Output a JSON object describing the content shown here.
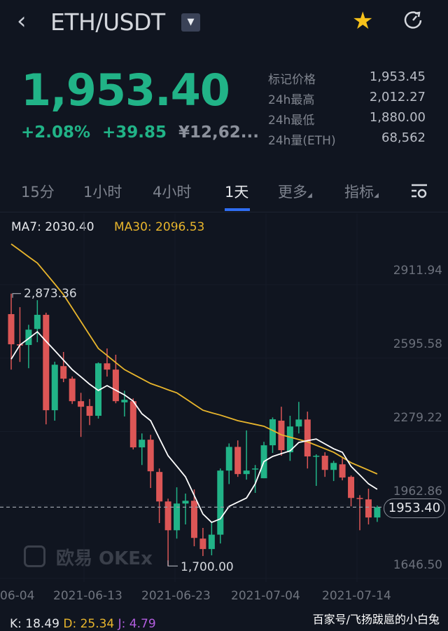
{
  "header": {
    "back_icon": "chevron-left-icon",
    "pair": "ETH/USDT",
    "dropdown_icon": "caret-down-icon",
    "favorite_icon": "star-icon",
    "refresh_icon": "refresh-icon"
  },
  "ticker": {
    "last_price": "1,953.40",
    "change_pct": "+2.08%",
    "change_abs": "+39.85",
    "cny_price": "¥12,62...",
    "stats": [
      {
        "label": "标记价格",
        "value": "1,953.45"
      },
      {
        "label": "24h最高",
        "value": "2,012.27"
      },
      {
        "label": "24h最低",
        "value": "1,880.00"
      },
      {
        "label": "24h量(ETH)",
        "value": "68,562"
      }
    ]
  },
  "tabs": [
    {
      "label": "15分"
    },
    {
      "label": "1小时"
    },
    {
      "label": "4小时"
    },
    {
      "label": "1天",
      "active": true
    },
    {
      "label": "更多"
    },
    {
      "label": "指标"
    }
  ],
  "tab_settings_icon": "chart-settings-icon",
  "indicators": {
    "ma7": "MA7: 2030.40",
    "ma30": "MA30: 2096.53",
    "kdj_k": "K: 18.49",
    "kdj_d": "D: 25.34",
    "kdj_j": "J: 4.79"
  },
  "watermark": "欧易 OKEx",
  "credit": "百家号/飞扬跋扈的小白兔",
  "colors": {
    "up": "#21b387",
    "down": "#dc5656",
    "ma7": "#ffffff",
    "ma30": "#e8b52c",
    "accent": "#2f6df2"
  },
  "chart_data": {
    "type": "candlestick",
    "y_ticks": [
      "2911.94",
      "2595.58",
      "2279.22",
      "1962.86",
      "1646.50"
    ],
    "ylim": [
      1646.5,
      2911.94
    ],
    "x_ticks": [
      "06-04",
      "2021-06-13",
      "2021-06-23",
      "2021-07-04",
      "2021-07-14"
    ],
    "current_price": "1953.40",
    "max_label": "2,873.36",
    "min_label": "1,700.00",
    "candles": [
      [
        2785,
        2873.36,
        2546,
        2655
      ],
      [
        2655,
        2815,
        2579,
        2650
      ],
      [
        2652,
        2739,
        2552,
        2718
      ],
      [
        2721,
        2845,
        2664,
        2782
      ],
      [
        2782,
        2791,
        2310,
        2371
      ],
      [
        2371,
        2580,
        2326,
        2567
      ],
      [
        2561,
        2622,
        2492,
        2507
      ],
      [
        2507,
        2516,
        2398,
        2410
      ],
      [
        2410,
        2446,
        2256,
        2386
      ],
      [
        2389,
        2419,
        2307,
        2347
      ],
      [
        2347,
        2577,
        2335,
        2573
      ],
      [
        2573,
        2637,
        2516,
        2546
      ],
      [
        2546,
        2610,
        2401,
        2410
      ],
      [
        2405,
        2455,
        2344,
        2416
      ],
      [
        2410,
        2422,
        2202,
        2211
      ],
      [
        2211,
        2271,
        2135,
        2244
      ],
      [
        2244,
        2265,
        2036,
        2108
      ],
      [
        2105,
        2120,
        1885,
        1978
      ],
      [
        1978,
        1990,
        1700,
        1854
      ],
      [
        1854,
        2039,
        1818,
        1969
      ],
      [
        1969,
        2012,
        1879,
        1981
      ],
      [
        1981,
        2030,
        1785,
        1821
      ],
      [
        1818,
        1864,
        1743,
        1773
      ],
      [
        1773,
        1888,
        1746,
        1835
      ],
      [
        1835,
        2120,
        1797,
        2111
      ],
      [
        2111,
        2228,
        2053,
        2213
      ],
      [
        2213,
        2241,
        2084,
        2096
      ],
      [
        2096,
        2284,
        2072,
        2111
      ],
      [
        2120,
        2135,
        2015,
        2120
      ],
      [
        2078,
        2235,
        2078,
        2220
      ],
      [
        2220,
        2340,
        2187,
        2332
      ],
      [
        2326,
        2386,
        2175,
        2199
      ],
      [
        2190,
        2347,
        2153,
        2301
      ],
      [
        2301,
        2407,
        2271,
        2331
      ],
      [
        2331,
        2365,
        2120,
        2172
      ],
      [
        2172,
        2181,
        2045,
        2175
      ],
      [
        2175,
        2190,
        2084,
        2114
      ],
      [
        2114,
        2153,
        2066,
        2144
      ],
      [
        2138,
        2165,
        2069,
        2081
      ],
      [
        2084,
        2090,
        1957,
        1993
      ],
      [
        1993,
        2005,
        1854,
        1990
      ],
      [
        1987,
        2033,
        1879,
        1909
      ],
      [
        1909,
        1960,
        1890,
        1953.4
      ]
    ],
    "ma7": [
      2591,
      2652,
      2680,
      2709,
      2668,
      2628,
      2587,
      2546,
      2515,
      2483,
      2456,
      2477,
      2457,
      2437,
      2410,
      2356,
      2326,
      2250,
      2175,
      2130,
      2084,
      2004,
      1924,
      1888,
      1903,
      1957,
      1975,
      1993,
      2054,
      2150,
      2172,
      2184,
      2196,
      2232,
      2240,
      2247,
      2226,
      2205,
      2190,
      2129,
      2092,
      2054,
      2030.4
    ],
    "ma30": [
      3087,
      3060,
      3032,
      3005,
      2960,
      2915,
      2869,
      2811,
      2753,
      2695,
      2637,
      2607,
      2576,
      2546,
      2526,
      2506,
      2486,
      2473,
      2459,
      2446,
      2421,
      2396,
      2371,
      2360,
      2350,
      2338,
      2326,
      2318,
      2310,
      2302,
      2284,
      2265,
      2255,
      2245,
      2235,
      2220,
      2205,
      2190,
      2168,
      2145,
      2129,
      2113,
      2096.53
    ]
  }
}
